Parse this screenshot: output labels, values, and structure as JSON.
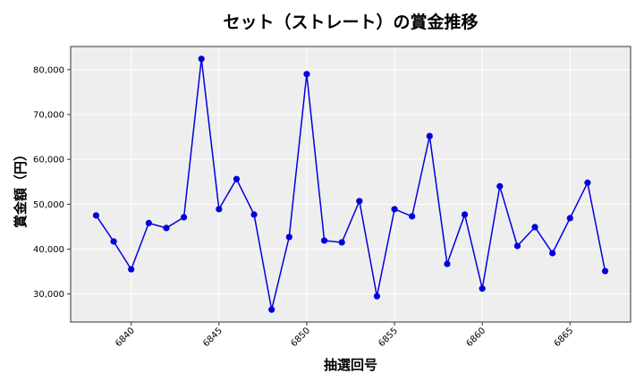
{
  "chart_data": {
    "type": "line",
    "title": "セット（ストレート）の賞金推移",
    "xlabel": "抽選回号",
    "ylabel": "賞金額（円）",
    "x": [
      6838,
      6839,
      6840,
      6841,
      6842,
      6843,
      6844,
      6845,
      6846,
      6847,
      6848,
      6849,
      6850,
      6851,
      6852,
      6853,
      6854,
      6855,
      6856,
      6857,
      6858,
      6859,
      6860,
      6861,
      6862,
      6863,
      6864,
      6865,
      6866,
      6867
    ],
    "series": [
      {
        "name": "賞金額",
        "color": "#0000dd",
        "marker": "circle",
        "values": [
          47500,
          41700,
          35500,
          45800,
          44700,
          47100,
          82400,
          48900,
          55600,
          47700,
          26500,
          42700,
          79000,
          41900,
          41500,
          50700,
          29500,
          48900,
          47300,
          65200,
          36700,
          47700,
          31200,
          54000,
          40700,
          44900,
          39100,
          46900,
          54800,
          35100
        ]
      }
    ],
    "xticks": [
      6840,
      6845,
      6850,
      6855,
      6860,
      6865
    ],
    "xtick_labels": [
      "6840",
      "6845",
      "6850",
      "6855",
      "6860",
      "6865"
    ],
    "yticks": [
      30000,
      40000,
      50000,
      60000,
      70000,
      80000
    ],
    "ytick_labels": [
      "30,000",
      "40,000",
      "50,000",
      "60,000",
      "70,000",
      "80,000"
    ],
    "xlim": [
      6836.55,
      6868.45
    ],
    "ylim": [
      23750,
      85150
    ],
    "grid": true,
    "legend": null,
    "background_color": "#eeeeee",
    "grid_color": "#ffffff"
  }
}
